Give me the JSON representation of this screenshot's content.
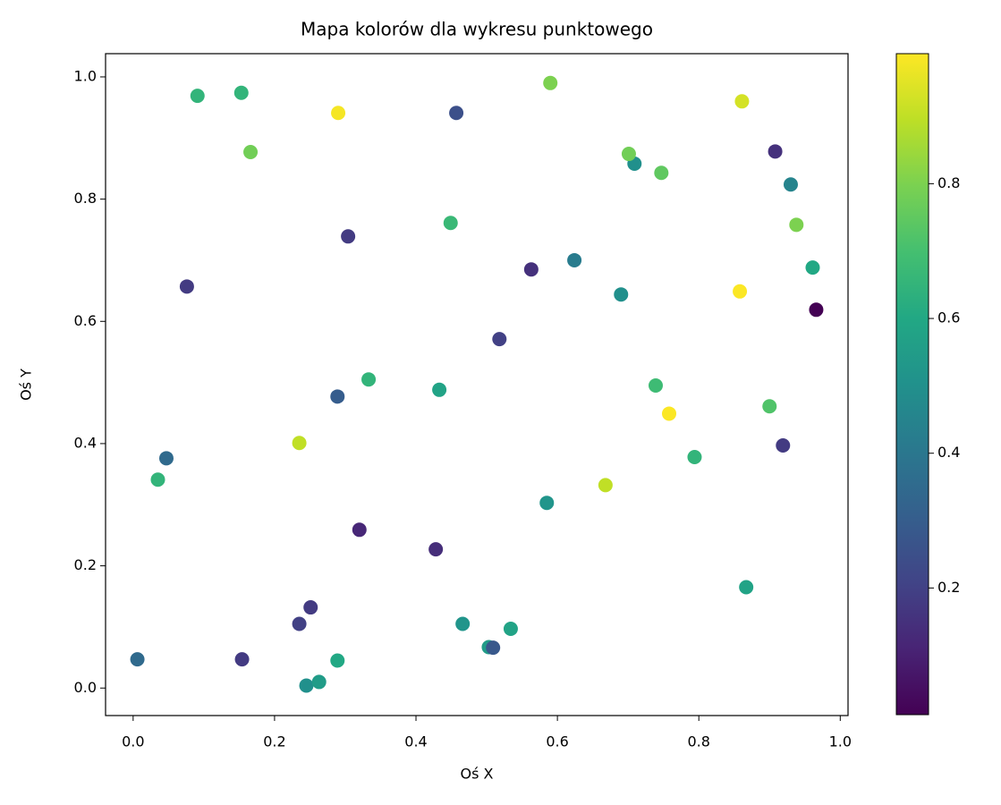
{
  "chart_data": {
    "type": "scatter",
    "title": "Mapa kolorów dla wykresu punktowego",
    "x_label": "Oś X",
    "y_label": "Oś Y",
    "colormap": "viridis",
    "x": [
      0.006,
      0.154,
      0.245,
      0.263,
      0.289,
      0.235,
      0.251,
      0.466,
      0.503,
      0.509,
      0.534,
      0.32,
      0.428,
      0.035,
      0.047,
      0.235,
      0.289,
      0.333,
      0.433,
      0.518,
      0.585,
      0.668,
      0.739,
      0.758,
      0.794,
      0.867,
      0.9,
      0.919,
      0.076,
      0.304,
      0.449,
      0.563,
      0.624,
      0.69,
      0.858,
      0.961,
      0.966,
      0.938,
      0.93,
      0.908,
      0.861,
      0.709,
      0.701,
      0.747,
      0.59,
      0.457,
      0.29,
      0.166,
      0.091,
      0.153
    ],
    "y": [
      0.047,
      0.047,
      0.004,
      0.01,
      0.045,
      0.105,
      0.132,
      0.105,
      0.067,
      0.066,
      0.097,
      0.259,
      0.227,
      0.341,
      0.376,
      0.401,
      0.477,
      0.505,
      0.488,
      0.571,
      0.303,
      0.332,
      0.495,
      0.449,
      0.378,
      0.165,
      0.461,
      0.397,
      0.657,
      0.739,
      0.761,
      0.685,
      0.7,
      0.644,
      0.649,
      0.688,
      0.619,
      0.758,
      0.824,
      0.878,
      0.96,
      0.858,
      0.874,
      0.843,
      0.99,
      0.941,
      0.941,
      0.877,
      0.969,
      0.974
    ],
    "c": [
      0.35,
      0.18,
      0.5,
      0.55,
      0.6,
      0.2,
      0.18,
      0.52,
      0.55,
      0.28,
      0.58,
      0.12,
      0.14,
      0.65,
      0.35,
      0.9,
      0.3,
      0.65,
      0.58,
      0.2,
      0.52,
      0.9,
      0.68,
      0.99,
      0.65,
      0.58,
      0.72,
      0.18,
      0.18,
      0.18,
      0.67,
      0.15,
      0.42,
      0.5,
      0.99,
      0.6,
      0.012,
      0.8,
      0.45,
      0.15,
      0.93,
      0.5,
      0.78,
      0.75,
      0.8,
      0.25,
      0.98,
      0.78,
      0.65,
      0.65
    ],
    "xlim": [
      -0.039,
      1.011
    ],
    "ylim": [
      -0.045,
      1.038
    ],
    "clim": [
      0.012,
      0.993
    ],
    "xticks": [
      {
        "value": 0,
        "label": "0.0"
      },
      0.2,
      0.4,
      0.6,
      0.8,
      {
        "value": 1,
        "label": "1.0"
      }
    ],
    "yticks": [
      {
        "value": 0,
        "label": "0.0"
      },
      0.2,
      0.4,
      0.6,
      0.8,
      {
        "value": 1,
        "label": "1.0"
      }
    ],
    "colorbar_ticks": [
      0.2,
      0.4,
      0.6,
      0.8
    ]
  }
}
